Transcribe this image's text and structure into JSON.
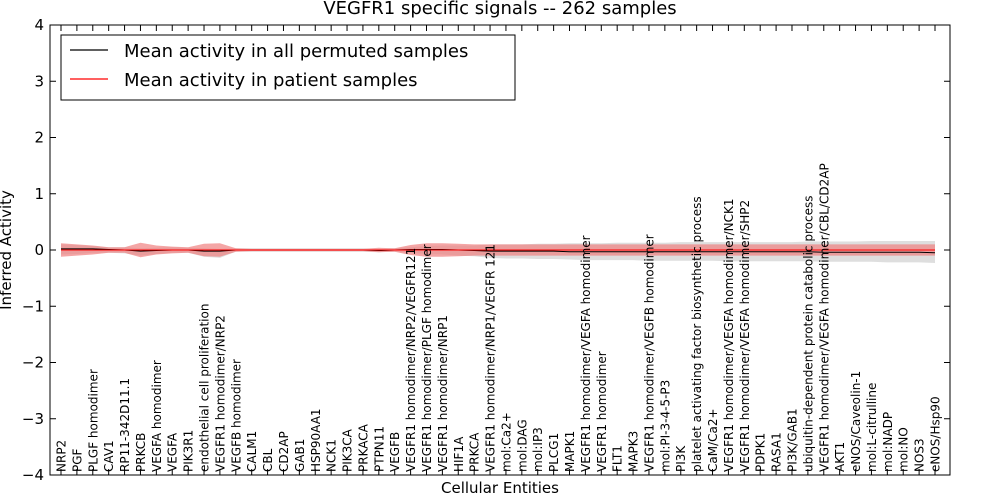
{
  "chart_data": {
    "type": "line",
    "title": "VEGFR1 specific signals -- 262 samples",
    "xlabel": "Cellular Entities",
    "ylabel": "Inferred Activity",
    "ylim": [
      -4,
      4
    ],
    "yticks": [
      -4,
      -3,
      -2,
      -1,
      0,
      1,
      2,
      3,
      4
    ],
    "ytick_labels": [
      "−4",
      "−3",
      "−2",
      "−1",
      "0",
      "1",
      "2",
      "3",
      "4"
    ],
    "grid": false,
    "legend_position": "top-left",
    "categories": [
      "NRP2",
      "PGF",
      "PLGF homodimer",
      "CAV1",
      "RP11-342D11.1",
      "PRKCB",
      "VEGFA homodimer",
      "VEGFA",
      "PIK3R1",
      "endothelial cell proliferation",
      "VEGFR1 homodimer/NRP2",
      "VEGFB homodimer",
      "CALM1",
      "CBL",
      "CD2AP",
      "GAB1",
      "HSP90AA1",
      "NCK1",
      "PIK3CA",
      "PRKACA",
      "PTPN11",
      "VEGFB",
      "VEGFR1 homodimer/NRP2/VEGFR121",
      "VEGFR1 homodimer/PLGF homodimer",
      "VEGFR1 homodimer/NRP1",
      "HIF1A",
      "PRKCA",
      "VEGFR1 homodimer/NRP1/VEGFR 121",
      "mol:Ca2+",
      "mol:DAG",
      "mol:IP3",
      "PLCG1",
      "MAPK1",
      "VEGFR1 homodimer/VEGFA homodimer",
      "VEGFR1 homodimer",
      "FLT1",
      "MAPK3",
      "VEGFR1 homodimer/VEGFB homodimer",
      "mol:PI-3-4-5-P3",
      "PI3K",
      "platelet activating factor biosynthetic process",
      "CaM/Ca2+",
      "VEGFR1 homodimer/VEGFA homodimer/NCK1",
      "VEGFR1 homodimer/VEGFA homodimer/SHP2",
      "PDPK1",
      "RASA1",
      "PI3K/GAB1",
      "ubiquitin-dependent protein catabolic process",
      "VEGFR1 homodimer/VEGFA homodimer/CBL/CD2AP",
      "AKT1",
      "eNOS/Caveolin-1",
      "mol:L-citrulline",
      "mol:NADP",
      "mol:NO",
      "NOS3",
      "eNOS/Hsp90"
    ],
    "series": [
      {
        "name": "Mean activity in all permuted samples",
        "color": "#000000",
        "values": [
          0.02,
          0.02,
          0.02,
          0.01,
          0,
          -0.02,
          -0.01,
          0,
          0,
          -0.02,
          -0.02,
          0,
          0,
          0,
          0,
          0,
          0,
          0,
          0,
          0,
          -0.01,
          0,
          0.01,
          0.01,
          0.01,
          0,
          -0.01,
          -0.02,
          -0.02,
          -0.02,
          -0.02,
          -0.02,
          -0.03,
          -0.03,
          -0.03,
          -0.03,
          -0.03,
          -0.03,
          -0.03,
          -0.03,
          -0.03,
          -0.03,
          -0.03,
          -0.03,
          -0.03,
          -0.03,
          -0.03,
          -0.03,
          -0.04,
          -0.04,
          -0.04,
          -0.04,
          -0.04,
          -0.04,
          -0.04,
          -0.05
        ],
        "band_upper": [
          0.1,
          0.09,
          0.07,
          0.05,
          0.05,
          0.03,
          0.04,
          0.05,
          0.04,
          0.03,
          0.02,
          0.03,
          0.03,
          0.03,
          0.03,
          0.03,
          0.03,
          0.03,
          0.03,
          0.03,
          0.02,
          0.03,
          0.05,
          0.07,
          0.08,
          0.08,
          0.08,
          0.1,
          0.1,
          0.1,
          0.11,
          0.11,
          0.12,
          0.12,
          0.12,
          0.13,
          0.13,
          0.13,
          0.13,
          0.14,
          0.14,
          0.14,
          0.14,
          0.14,
          0.14,
          0.14,
          0.14,
          0.15,
          0.15,
          0.15,
          0.15,
          0.16,
          0.16,
          0.16,
          0.16,
          0.16
        ],
        "band_lower": [
          -0.08,
          -0.07,
          -0.05,
          -0.05,
          -0.06,
          -0.1,
          -0.07,
          -0.05,
          -0.05,
          -0.12,
          -0.14,
          -0.03,
          -0.03,
          -0.03,
          -0.03,
          -0.03,
          -0.03,
          -0.03,
          -0.03,
          -0.03,
          -0.04,
          -0.03,
          -0.05,
          -0.07,
          -0.08,
          -0.1,
          -0.11,
          -0.14,
          -0.15,
          -0.15,
          -0.16,
          -0.16,
          -0.17,
          -0.18,
          -0.18,
          -0.18,
          -0.18,
          -0.19,
          -0.19,
          -0.19,
          -0.19,
          -0.19,
          -0.2,
          -0.2,
          -0.2,
          -0.2,
          -0.2,
          -0.2,
          -0.21,
          -0.21,
          -0.21,
          -0.21,
          -0.22,
          -0.22,
          -0.22,
          -0.23
        ],
        "band_color": "#d3d3d3"
      },
      {
        "name": "Mean activity in patient samples",
        "color": "#ff0000",
        "values": [
          0,
          0,
          0,
          0,
          0,
          0,
          0,
          0,
          0,
          0,
          0,
          0,
          0,
          0,
          0,
          0,
          0,
          0,
          0,
          0,
          0,
          0,
          0,
          0,
          0,
          0,
          0,
          0,
          0,
          0,
          0,
          0,
          0,
          0,
          0,
          0,
          0,
          0,
          0,
          0,
          0,
          0,
          0,
          0,
          0,
          0,
          0,
          0,
          0,
          0,
          0,
          0,
          0,
          0,
          0,
          0
        ],
        "band_upper": [
          0.12,
          0.1,
          0.08,
          0.05,
          0.05,
          0.13,
          0.08,
          0.06,
          0.05,
          0.11,
          0.12,
          0.03,
          0.02,
          0.02,
          0.02,
          0.02,
          0.02,
          0.02,
          0.02,
          0.02,
          0.04,
          0.03,
          0.09,
          0.12,
          0.12,
          0.11,
          0.1,
          0.1,
          0.1,
          0.1,
          0.1,
          0.1,
          0.1,
          0.1,
          0.1,
          0.1,
          0.1,
          0.1,
          0.1,
          0.1,
          0.1,
          0.1,
          0.1,
          0.1,
          0.1,
          0.1,
          0.1,
          0.1,
          0.1,
          0.1,
          0.1,
          0.1,
          0.1,
          0.1,
          0.1,
          0.1
        ],
        "band_lower": [
          -0.12,
          -0.1,
          -0.08,
          -0.05,
          -0.05,
          -0.13,
          -0.08,
          -0.06,
          -0.05,
          -0.11,
          -0.12,
          -0.03,
          -0.02,
          -0.02,
          -0.02,
          -0.02,
          -0.02,
          -0.02,
          -0.02,
          -0.02,
          -0.04,
          -0.03,
          -0.09,
          -0.12,
          -0.12,
          -0.11,
          -0.1,
          -0.1,
          -0.1,
          -0.1,
          -0.1,
          -0.1,
          -0.1,
          -0.1,
          -0.1,
          -0.1,
          -0.1,
          -0.1,
          -0.1,
          -0.1,
          -0.1,
          -0.1,
          -0.1,
          -0.1,
          -0.1,
          -0.1,
          -0.1,
          -0.1,
          -0.1,
          -0.1,
          -0.1,
          -0.1,
          -0.1,
          -0.1,
          -0.1,
          -0.1
        ],
        "band_color": "#f08080"
      }
    ]
  }
}
